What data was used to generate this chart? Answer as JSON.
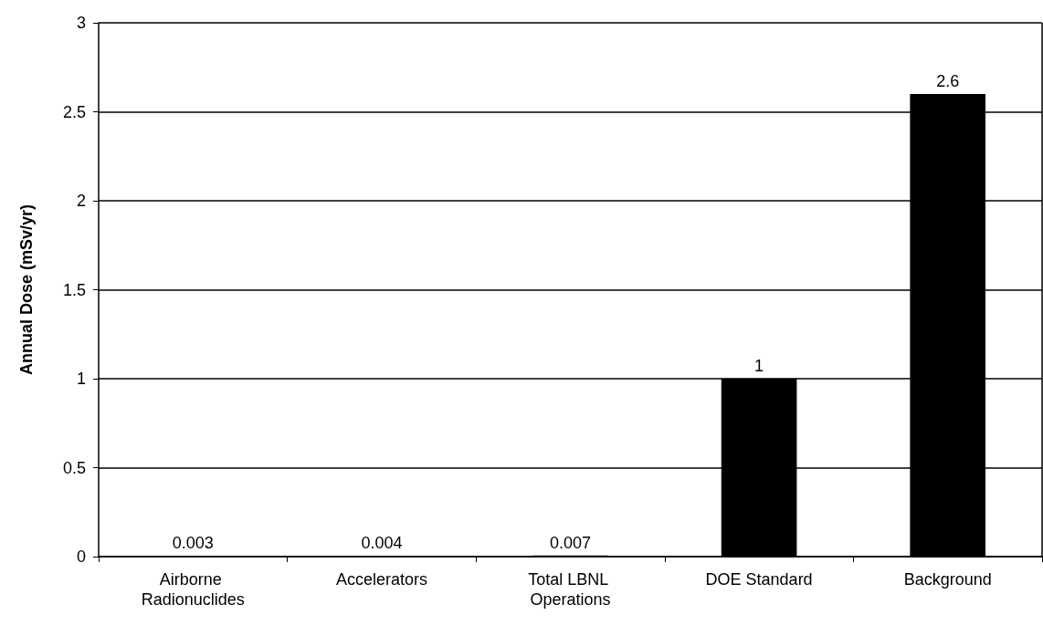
{
  "chart_data": {
    "type": "bar",
    "ylabel": "Annual Dose (mSv/yr)",
    "categories": [
      "Airborne Radionuclides",
      "Accelerators",
      "Total LBNL Operations",
      "DOE Standard",
      "Background"
    ],
    "values": [
      0.003,
      0.004,
      0.007,
      1,
      2.6
    ],
    "color": "#000000",
    "ylim": [
      0,
      3
    ],
    "yticks": [
      0,
      0.5,
      1,
      1.5,
      2,
      2.5,
      3
    ],
    "grid": "y",
    "data_labels": true,
    "legend": false
  }
}
